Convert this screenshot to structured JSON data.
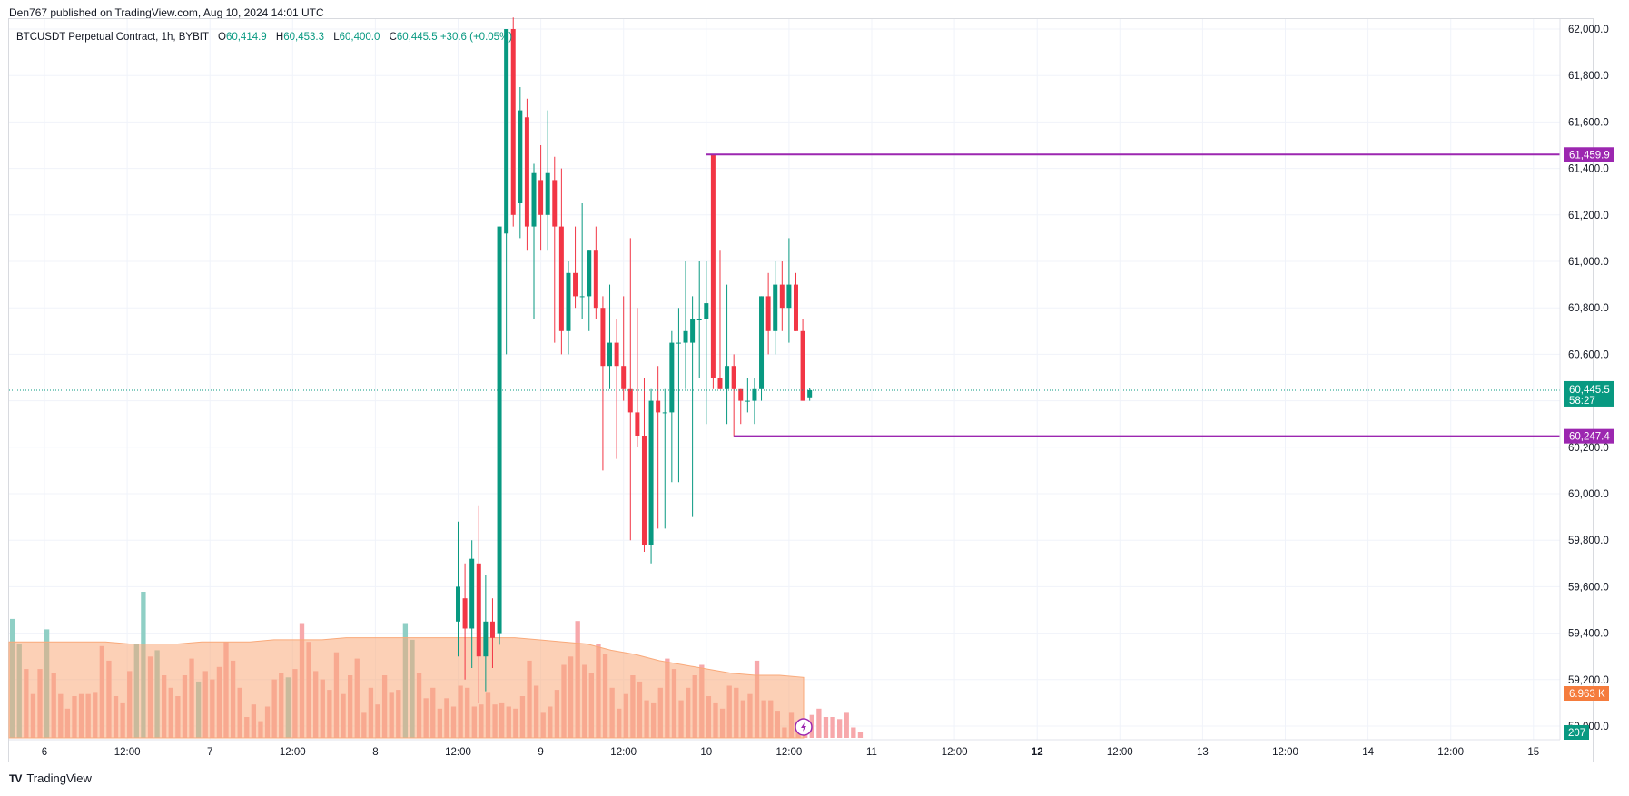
{
  "header": {
    "published": "Den767 published on TradingView.com, Aug 10, 2024 14:01 UTC"
  },
  "legend": {
    "symbol": "BTCUSDT Perpetual Contract, 1h, BYBIT",
    "o_label": "O",
    "o_value": "60,414.9",
    "h_label": "H",
    "h_value": "60,453.3",
    "l_label": "L",
    "l_value": "60,400.0",
    "c_label": "C",
    "c_value": "60,445.5",
    "change": "+30.6 (+0.05%)"
  },
  "footer": {
    "brand": "TradingView",
    "logo": "TV"
  },
  "colors": {
    "up": "#089981",
    "down": "#f23645",
    "up_vol": "#8fcfc5",
    "down_vol": "#f7a8ab",
    "vol_ma": "#f9a97a",
    "level": "#9c27b0",
    "last_price": "#089981",
    "vol_badge": "#f57c3d",
    "grid": "#f0f3fa"
  },
  "chart_data": {
    "type": "candlestick",
    "symbol": "BTCUSDT Perpetual Contract",
    "interval": "1h",
    "exchange": "BYBIT",
    "ylim": [
      59000,
      62000
    ],
    "y_ticks": [
      "62,000.0",
      "61,800.0",
      "61,600.0",
      "61,400.0",
      "61,200.0",
      "61,000.0",
      "60,800.0",
      "60,600.0",
      "60,400.0",
      "60,200.0",
      "60,000.0",
      "59,800.0",
      "59,600.0",
      "59,400.0",
      "59,200.0",
      "59,000.0"
    ],
    "x_ticks": [
      "6",
      "12:00",
      "7",
      "12:00",
      "8",
      "12:00",
      "9",
      "12:00",
      "10",
      "12:00",
      "11",
      "12:00",
      "12",
      "12:00",
      "13",
      "12:00",
      "14",
      "12:00",
      "15"
    ],
    "bold_x_ticks": [
      "12"
    ],
    "last_price": {
      "value": "60,445.5",
      "countdown": "58:27",
      "price": 60445.5
    },
    "levels": [
      {
        "label": "61,459.9",
        "value": 61459.9,
        "start_hour": 96
      },
      {
        "label": "60,247.4",
        "value": 60247.4,
        "start_hour": 100
      }
    ],
    "candles_start": "Aug 8 12:00",
    "candles": [
      {
        "o": 59450,
        "h": 59880,
        "l": 59300,
        "c": 59600
      },
      {
        "o": 59550,
        "h": 59700,
        "l": 59200,
        "c": 59420
      },
      {
        "o": 59420,
        "h": 59800,
        "l": 59250,
        "c": 59720
      },
      {
        "o": 59700,
        "h": 59950,
        "l": 59100,
        "c": 59300
      },
      {
        "o": 59300,
        "h": 59650,
        "l": 59150,
        "c": 59450
      },
      {
        "o": 59450,
        "h": 59550,
        "l": 59250,
        "c": 59380
      },
      {
        "o": 59400,
        "h": 61150,
        "l": 59350,
        "c": 61150
      },
      {
        "o": 61120,
        "h": 62000,
        "l": 60600,
        "c": 62000
      },
      {
        "o": 62000,
        "h": 62050,
        "l": 61150,
        "c": 61200
      },
      {
        "o": 61250,
        "h": 61750,
        "l": 61100,
        "c": 61650
      },
      {
        "o": 61620,
        "h": 61700,
        "l": 61050,
        "c": 61150
      },
      {
        "o": 61150,
        "h": 61420,
        "l": 60750,
        "c": 61380
      },
      {
        "o": 61350,
        "h": 61500,
        "l": 61050,
        "c": 61200
      },
      {
        "o": 61200,
        "h": 61650,
        "l": 61050,
        "c": 61380
      },
      {
        "o": 61350,
        "h": 61450,
        "l": 60650,
        "c": 61150
      },
      {
        "o": 61150,
        "h": 61400,
        "l": 60600,
        "c": 60700
      },
      {
        "o": 60700,
        "h": 61000,
        "l": 60600,
        "c": 60950
      },
      {
        "o": 60950,
        "h": 61150,
        "l": 60800,
        "c": 60850
      },
      {
        "o": 60850,
        "h": 61250,
        "l": 60750,
        "c": 60850
      },
      {
        "o": 60850,
        "h": 61050,
        "l": 60700,
        "c": 61050
      },
      {
        "o": 61050,
        "h": 61150,
        "l": 60750,
        "c": 60800
      },
      {
        "o": 60800,
        "h": 60850,
        "l": 60100,
        "c": 60550
      },
      {
        "o": 60550,
        "h": 60900,
        "l": 60450,
        "c": 60650
      },
      {
        "o": 60650,
        "h": 60750,
        "l": 60150,
        "c": 60550
      },
      {
        "o": 60550,
        "h": 60850,
        "l": 60400,
        "c": 60450
      },
      {
        "o": 60450,
        "h": 61100,
        "l": 59800,
        "c": 60350
      },
      {
        "o": 60350,
        "h": 60800,
        "l": 60200,
        "c": 60250
      },
      {
        "o": 60250,
        "h": 60500,
        "l": 59750,
        "c": 59780
      },
      {
        "o": 59780,
        "h": 60450,
        "l": 59700,
        "c": 60400
      },
      {
        "o": 60400,
        "h": 60550,
        "l": 59850,
        "c": 60350
      },
      {
        "o": 60350,
        "h": 60450,
        "l": 59850,
        "c": 60350
      },
      {
        "o": 60350,
        "h": 60700,
        "l": 60050,
        "c": 60650
      },
      {
        "o": 60650,
        "h": 60800,
        "l": 60050,
        "c": 60650
      },
      {
        "o": 60650,
        "h": 61000,
        "l": 60450,
        "c": 60700
      },
      {
        "o": 60650,
        "h": 60850,
        "l": 59900,
        "c": 60750
      },
      {
        "o": 60750,
        "h": 61000,
        "l": 60500,
        "c": 60750
      },
      {
        "o": 60750,
        "h": 61000,
        "l": 60300,
        "c": 60820
      },
      {
        "o": 61459.9,
        "h": 61459.9,
        "l": 60450,
        "c": 60500
      },
      {
        "o": 60500,
        "h": 61050,
        "l": 60450,
        "c": 60450
      },
      {
        "o": 60450,
        "h": 60900,
        "l": 60300,
        "c": 60550
      },
      {
        "o": 60550,
        "h": 60600,
        "l": 60247.4,
        "c": 60450
      },
      {
        "o": 60450,
        "h": 60450,
        "l": 60300,
        "c": 60400
      },
      {
        "o": 60400,
        "h": 60500,
        "l": 60350,
        "c": 60400
      },
      {
        "o": 60400,
        "h": 60500,
        "l": 60300,
        "c": 60450
      },
      {
        "o": 60450,
        "h": 60850,
        "l": 60400,
        "c": 60850
      },
      {
        "o": 60850,
        "h": 60950,
        "l": 60600,
        "c": 60700
      },
      {
        "o": 60700,
        "h": 61000,
        "l": 60600,
        "c": 60900
      },
      {
        "o": 60900,
        "h": 61000,
        "l": 60700,
        "c": 60800
      },
      {
        "o": 60800,
        "h": 61100,
        "l": 60650,
        "c": 60900
      },
      {
        "o": 60900,
        "h": 60950,
        "l": 60700,
        "c": 60700
      },
      {
        "o": 60700,
        "h": 60750,
        "l": 60400,
        "c": 60400
      },
      {
        "o": 60414.9,
        "h": 60453.3,
        "l": 60400,
        "c": 60445.5
      }
    ],
    "volume": {
      "badge_ma": "6.963 K",
      "badge_last": "207",
      "bars": [
        {
          "v": 0.57,
          "up": true
        },
        {
          "v": 0.45,
          "up": true
        },
        {
          "v": 0.33,
          "up": false
        },
        {
          "v": 0.21,
          "up": false
        },
        {
          "v": 0.33,
          "up": false
        },
        {
          "v": 0.52,
          "up": true
        },
        {
          "v": 0.31,
          "up": false
        },
        {
          "v": 0.21,
          "up": false
        },
        {
          "v": 0.14,
          "up": false
        },
        {
          "v": 0.2,
          "up": false
        },
        {
          "v": 0.21,
          "up": false
        },
        {
          "v": 0.21,
          "up": false
        },
        {
          "v": 0.22,
          "up": false
        },
        {
          "v": 0.44,
          "up": false
        },
        {
          "v": 0.37,
          "up": false
        },
        {
          "v": 0.2,
          "up": false
        },
        {
          "v": 0.17,
          "up": false
        },
        {
          "v": 0.32,
          "up": false
        },
        {
          "v": 0.45,
          "up": true
        },
        {
          "v": 0.7,
          "up": true
        },
        {
          "v": 0.39,
          "up": false
        },
        {
          "v": 0.42,
          "up": true
        },
        {
          "v": 0.3,
          "up": false
        },
        {
          "v": 0.24,
          "up": false
        },
        {
          "v": 0.2,
          "up": false
        },
        {
          "v": 0.3,
          "up": false
        },
        {
          "v": 0.38,
          "up": false
        },
        {
          "v": 0.27,
          "up": true
        },
        {
          "v": 0.32,
          "up": false
        },
        {
          "v": 0.28,
          "up": false
        },
        {
          "v": 0.34,
          "up": false
        },
        {
          "v": 0.46,
          "up": false
        },
        {
          "v": 0.37,
          "up": false
        },
        {
          "v": 0.24,
          "up": false
        },
        {
          "v": 0.1,
          "up": false
        },
        {
          "v": 0.16,
          "up": false
        },
        {
          "v": 0.08,
          "up": false
        },
        {
          "v": 0.15,
          "up": false
        },
        {
          "v": 0.28,
          "up": false
        },
        {
          "v": 0.31,
          "up": false
        },
        {
          "v": 0.29,
          "up": true
        },
        {
          "v": 0.33,
          "up": false
        },
        {
          "v": 0.55,
          "up": false
        },
        {
          "v": 0.46,
          "up": false
        },
        {
          "v": 0.32,
          "up": false
        },
        {
          "v": 0.28,
          "up": false
        },
        {
          "v": 0.23,
          "up": false
        },
        {
          "v": 0.41,
          "up": false
        },
        {
          "v": 0.21,
          "up": false
        },
        {
          "v": 0.3,
          "up": false
        },
        {
          "v": 0.38,
          "up": false
        },
        {
          "v": 0.12,
          "up": false
        },
        {
          "v": 0.24,
          "up": false
        },
        {
          "v": 0.16,
          "up": false
        },
        {
          "v": 0.3,
          "up": false
        },
        {
          "v": 0.22,
          "up": false
        },
        {
          "v": 0.23,
          "up": false
        },
        {
          "v": 0.55,
          "up": true
        },
        {
          "v": 0.47,
          "up": true
        },
        {
          "v": 0.31,
          "up": false
        },
        {
          "v": 0.19,
          "up": false
        },
        {
          "v": 0.24,
          "up": false
        },
        {
          "v": 0.14,
          "up": false
        },
        {
          "v": 0.19,
          "up": false
        },
        {
          "v": 0.15,
          "up": false
        },
        {
          "v": 0.25,
          "up": false
        },
        {
          "v": 0.24,
          "up": false
        },
        {
          "v": 0.15,
          "up": false
        },
        {
          "v": 0.16,
          "up": false
        },
        {
          "v": 0.22,
          "up": false
        },
        {
          "v": 0.16,
          "up": false
        },
        {
          "v": 0.17,
          "up": false
        },
        {
          "v": 0.15,
          "up": false
        },
        {
          "v": 0.14,
          "up": false
        },
        {
          "v": 0.2,
          "up": false
        },
        {
          "v": 0.37,
          "up": false
        },
        {
          "v": 0.25,
          "up": false
        },
        {
          "v": 0.12,
          "up": false
        },
        {
          "v": 0.15,
          "up": false
        },
        {
          "v": 0.23,
          "up": false
        },
        {
          "v": 0.35,
          "up": false
        },
        {
          "v": 0.39,
          "up": false
        },
        {
          "v": 0.56,
          "up": false
        },
        {
          "v": 0.35,
          "up": false
        },
        {
          "v": 0.31,
          "up": false
        },
        {
          "v": 0.45,
          "up": false
        },
        {
          "v": 0.4,
          "up": false
        },
        {
          "v": 0.24,
          "up": false
        },
        {
          "v": 0.14,
          "up": false
        },
        {
          "v": 0.21,
          "up": false
        },
        {
          "v": 0.3,
          "up": false
        },
        {
          "v": 0.27,
          "up": false
        },
        {
          "v": 0.18,
          "up": false
        },
        {
          "v": 0.17,
          "up": false
        },
        {
          "v": 0.24,
          "up": false
        },
        {
          "v": 0.38,
          "up": false
        },
        {
          "v": 0.33,
          "up": false
        },
        {
          "v": 0.18,
          "up": false
        },
        {
          "v": 0.24,
          "up": false
        },
        {
          "v": 0.3,
          "up": false
        },
        {
          "v": 0.35,
          "up": false
        },
        {
          "v": 0.2,
          "up": false
        },
        {
          "v": 0.17,
          "up": false
        },
        {
          "v": 0.14,
          "up": false
        },
        {
          "v": 0.25,
          "up": false
        },
        {
          "v": 0.24,
          "up": false
        },
        {
          "v": 0.18,
          "up": false
        },
        {
          "v": 0.21,
          "up": false
        },
        {
          "v": 0.37,
          "up": false
        },
        {
          "v": 0.18,
          "up": false
        },
        {
          "v": 0.18,
          "up": false
        },
        {
          "v": 0.13,
          "up": false
        },
        {
          "v": 0.05,
          "up": false
        },
        {
          "v": 0.12,
          "up": false
        },
        {
          "v": 0.08,
          "up": false
        },
        {
          "v": 0.06,
          "up": false
        },
        {
          "v": 0.11,
          "up": false
        },
        {
          "v": 0.14,
          "up": false
        },
        {
          "v": 0.1,
          "up": false
        },
        {
          "v": 0.1,
          "up": false
        },
        {
          "v": 0.09,
          "up": false
        },
        {
          "v": 0.12,
          "up": false
        },
        {
          "v": 0.05,
          "up": false
        },
        {
          "v": 0.03,
          "up": false
        }
      ],
      "ma": [
        0.46,
        0.46,
        0.46,
        0.46,
        0.46,
        0.45,
        0.45,
        0.45,
        0.46,
        0.46,
        0.46,
        0.47,
        0.47,
        0.47,
        0.48,
        0.48,
        0.48,
        0.48,
        0.48,
        0.48,
        0.48,
        0.48,
        0.47,
        0.46,
        0.45,
        0.42,
        0.4,
        0.37,
        0.35,
        0.33,
        0.31,
        0.3,
        0.3,
        0.29
      ]
    }
  }
}
